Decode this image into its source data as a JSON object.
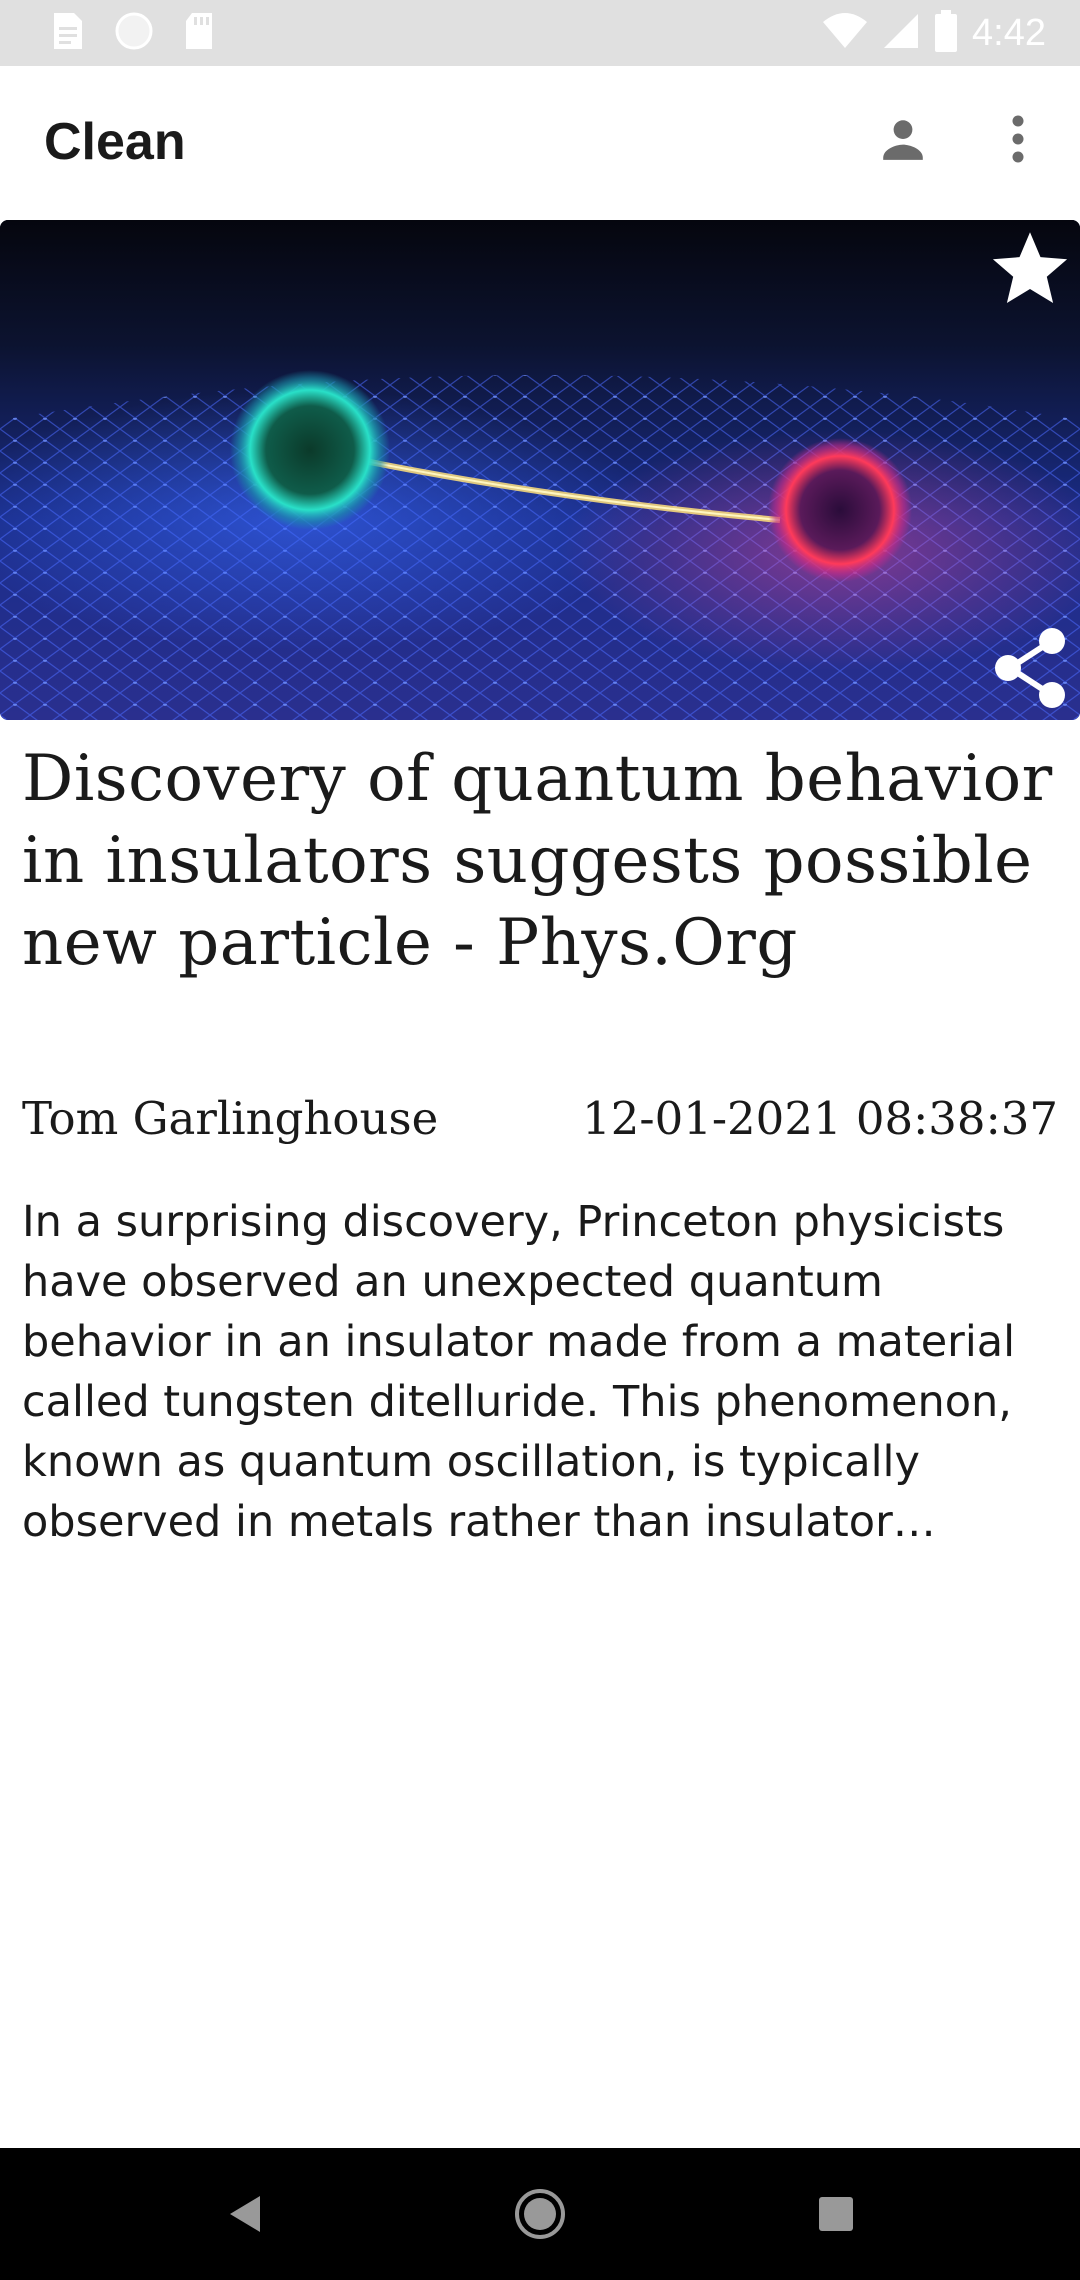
{
  "status_bar": {
    "time": "4:42",
    "left_icons": [
      "document-icon",
      "circle-icon",
      "sd-card-icon"
    ],
    "right_icons": [
      "wifi-icon",
      "signal-icon",
      "battery-icon"
    ]
  },
  "app_bar": {
    "title": "Clean",
    "actions": [
      "account-icon",
      "more-vert-icon"
    ]
  },
  "article": {
    "title": "Discovery of quantum behavior in insulators suggests possible new particle - Phys.Org",
    "author": "Tom Garlinghouse",
    "date": "12-01-2021 08:38:37",
    "summary": "In a surprising discovery, Princeton physicists have observed an unexpected quantum behavior in an insulator made from a material called tungsten ditelluride. This phenomenon, known as quantum oscillation, is typically observed in metals rather than insulator…",
    "image_actions": [
      "star-icon",
      "share-icon"
    ]
  },
  "nav_bar": {
    "buttons": [
      "back-icon",
      "home-icon",
      "recents-icon"
    ]
  },
  "colors": {
    "status_bar_bg": "#e0e0e0",
    "app_bar_bg": "#ffffff",
    "text": "#1a1a1a",
    "nav_bar_bg": "#000000"
  }
}
